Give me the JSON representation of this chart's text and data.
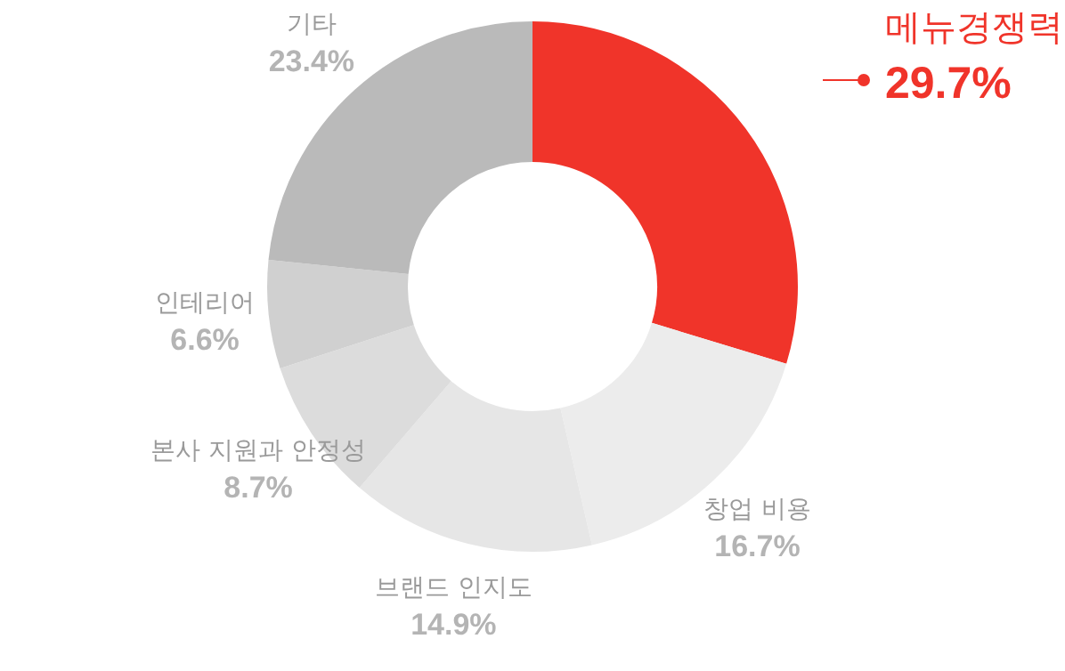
{
  "chart_data": {
    "type": "donut",
    "categories": [
      "메뉴경쟁력",
      "창업 비용",
      "브랜드 인지도",
      "본사 지원과 안정성",
      "인테리어",
      "기타"
    ],
    "values": [
      29.7,
      16.7,
      14.9,
      8.7,
      6.6,
      23.4
    ],
    "value_labels": [
      "29.7%",
      "16.7%",
      "14.9%",
      "8.7%",
      "6.6%",
      "23.4%"
    ],
    "colors": [
      "#f0342a",
      "#ececec",
      "#e6e6e6",
      "#dcdcdc",
      "#d0d0d0",
      "#bababa"
    ],
    "legend": false
  }
}
